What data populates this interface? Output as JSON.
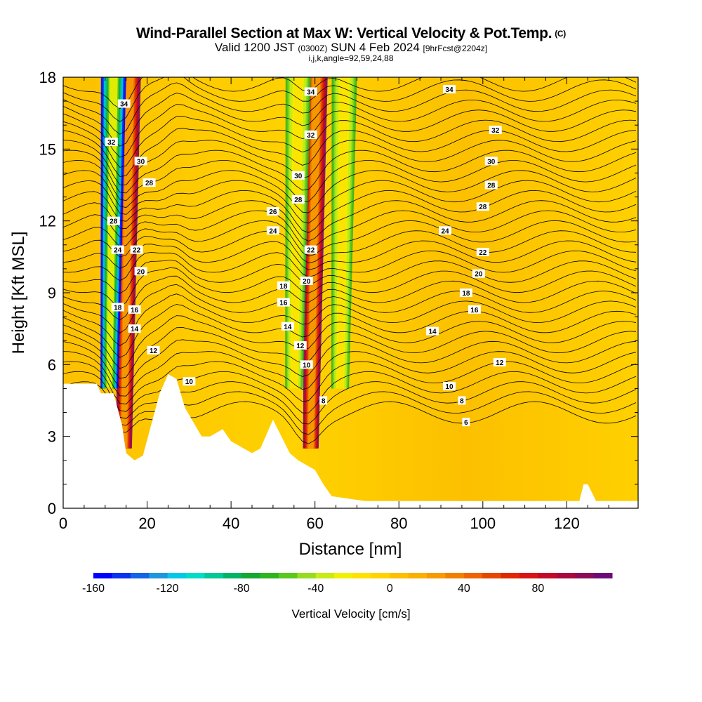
{
  "title": {
    "main": "Wind-Parallel Section at Max W: Vertical Velocity & Pot.Temp.",
    "copyright": "(C)",
    "valid_prefix": "Valid 1200 JST",
    "valid_utc": "(0300Z)",
    "valid_date": "SUN 4 Feb 2024",
    "forecast": "[9hrFcst@2204z]",
    "indices": "i,j,k,angle=92,59,24,88"
  },
  "chart_data": {
    "type": "heatmap",
    "xlabel": "Distance [nm]",
    "ylabel": "Height [Kft MSL]",
    "xlim": [
      0,
      137
    ],
    "ylim": [
      0,
      18
    ],
    "x_ticks": [
      0,
      20,
      40,
      60,
      80,
      100,
      120
    ],
    "y_ticks": [
      0,
      3,
      6,
      9,
      12,
      15,
      18
    ],
    "colorbar": {
      "title": "Vertical Velocity [cm/s]",
      "min": -160,
      "max": 110,
      "step": 10,
      "tick_values": [
        -160,
        -120,
        -80,
        -40,
        0,
        40,
        80
      ],
      "colors": [
        "#0000ff",
        "#0a32f0",
        "#1464e6",
        "#1e96dc",
        "#00c8e6",
        "#00dcc8",
        "#00c896",
        "#00b464",
        "#14a832",
        "#2db41e",
        "#5ac81e",
        "#96dc1e",
        "#c8eb14",
        "#f0f000",
        "#ffe100",
        "#ffd200",
        "#fcc000",
        "#fab000",
        "#f79a00",
        "#f27f00",
        "#ed6400",
        "#e64600",
        "#e02800",
        "#d91414",
        "#c40a28",
        "#a8083c",
        "#8c0a5a",
        "#6e0a78"
      ]
    },
    "terrain_kft": [
      [
        0,
        5.2
      ],
      [
        8,
        5.2
      ],
      [
        9,
        4.8
      ],
      [
        12,
        4.8
      ],
      [
        14,
        3.5
      ],
      [
        15,
        2.3
      ],
      [
        17,
        2.0
      ],
      [
        19,
        2.2
      ],
      [
        21,
        3.5
      ],
      [
        23,
        4.8
      ],
      [
        25,
        5.6
      ],
      [
        27,
        5.4
      ],
      [
        29,
        4.2
      ],
      [
        31,
        3.6
      ],
      [
        33,
        3.0
      ],
      [
        35,
        3.0
      ],
      [
        38,
        3.3
      ],
      [
        40,
        2.8
      ],
      [
        43,
        2.5
      ],
      [
        45,
        2.3
      ],
      [
        47,
        2.5
      ],
      [
        49,
        3.3
      ],
      [
        50,
        3.7
      ],
      [
        52,
        3.0
      ],
      [
        54,
        2.3
      ],
      [
        56,
        2.0
      ],
      [
        58,
        1.8
      ],
      [
        60,
        1.6
      ],
      [
        62,
        1.0
      ],
      [
        64,
        0.5
      ],
      [
        72,
        0.3
      ],
      [
        123,
        0.3
      ],
      [
        124,
        1.0
      ],
      [
        125,
        1.0
      ],
      [
        127,
        0.3
      ],
      [
        137,
        0.3
      ]
    ],
    "updraft_cores": [
      {
        "x_nm": 14.5,
        "w_cms": 110
      },
      {
        "x_nm": 59,
        "w_cms": 110
      }
    ],
    "downdraft_cores": [
      {
        "x_nm": 11,
        "w_cms": -160
      },
      {
        "x_nm": 55,
        "w_cms": -60
      },
      {
        "x_nm": 66,
        "w_cms": -60
      }
    ],
    "theta_contour_labels": [
      {
        "text": "34",
        "x_nm": 14.5,
        "y_kft": 16.9
      },
      {
        "text": "32",
        "x_nm": 11.5,
        "y_kft": 15.3
      },
      {
        "text": "30",
        "x_nm": 18.5,
        "y_kft": 14.5
      },
      {
        "text": "28",
        "x_nm": 20.5,
        "y_kft": 13.6
      },
      {
        "text": "28",
        "x_nm": 12,
        "y_kft": 12.0
      },
      {
        "text": "24",
        "x_nm": 13,
        "y_kft": 10.8
      },
      {
        "text": "22",
        "x_nm": 17.5,
        "y_kft": 10.8
      },
      {
        "text": "20",
        "x_nm": 18.5,
        "y_kft": 9.9
      },
      {
        "text": "18",
        "x_nm": 13,
        "y_kft": 8.4
      },
      {
        "text": "16",
        "x_nm": 17,
        "y_kft": 8.3
      },
      {
        "text": "14",
        "x_nm": 17,
        "y_kft": 7.5
      },
      {
        "text": "12",
        "x_nm": 21.5,
        "y_kft": 6.6
      },
      {
        "text": "10",
        "x_nm": 30,
        "y_kft": 5.3
      },
      {
        "text": "34",
        "x_nm": 59,
        "y_kft": 17.4
      },
      {
        "text": "32",
        "x_nm": 59,
        "y_kft": 15.6
      },
      {
        "text": "30",
        "x_nm": 56,
        "y_kft": 13.9
      },
      {
        "text": "28",
        "x_nm": 56,
        "y_kft": 12.9
      },
      {
        "text": "26",
        "x_nm": 50,
        "y_kft": 12.4
      },
      {
        "text": "24",
        "x_nm": 50,
        "y_kft": 11.6
      },
      {
        "text": "22",
        "x_nm": 59,
        "y_kft": 10.8
      },
      {
        "text": "20",
        "x_nm": 58,
        "y_kft": 9.5
      },
      {
        "text": "18",
        "x_nm": 52.5,
        "y_kft": 9.3
      },
      {
        "text": "16",
        "x_nm": 52.5,
        "y_kft": 8.6
      },
      {
        "text": "14",
        "x_nm": 53.5,
        "y_kft": 7.6
      },
      {
        "text": "12",
        "x_nm": 56.5,
        "y_kft": 6.8
      },
      {
        "text": "10",
        "x_nm": 58,
        "y_kft": 6.0
      },
      {
        "text": "8",
        "x_nm": 62,
        "y_kft": 4.5
      },
      {
        "text": "34",
        "x_nm": 92,
        "y_kft": 17.5
      },
      {
        "text": "32",
        "x_nm": 103,
        "y_kft": 15.8
      },
      {
        "text": "30",
        "x_nm": 102,
        "y_kft": 14.5
      },
      {
        "text": "28",
        "x_nm": 102,
        "y_kft": 13.5
      },
      {
        "text": "28",
        "x_nm": 100,
        "y_kft": 12.6
      },
      {
        "text": "24",
        "x_nm": 91,
        "y_kft": 11.6
      },
      {
        "text": "22",
        "x_nm": 100,
        "y_kft": 10.7
      },
      {
        "text": "20",
        "x_nm": 99,
        "y_kft": 9.8
      },
      {
        "text": "18",
        "x_nm": 96,
        "y_kft": 9.0
      },
      {
        "text": "16",
        "x_nm": 98,
        "y_kft": 8.3
      },
      {
        "text": "14",
        "x_nm": 88,
        "y_kft": 7.4
      },
      {
        "text": "12",
        "x_nm": 104,
        "y_kft": 6.1
      },
      {
        "text": "10",
        "x_nm": 92,
        "y_kft": 5.1
      },
      {
        "text": "8",
        "x_nm": 95,
        "y_kft": 4.5
      },
      {
        "text": "6",
        "x_nm": 96,
        "y_kft": 3.6
      }
    ]
  }
}
